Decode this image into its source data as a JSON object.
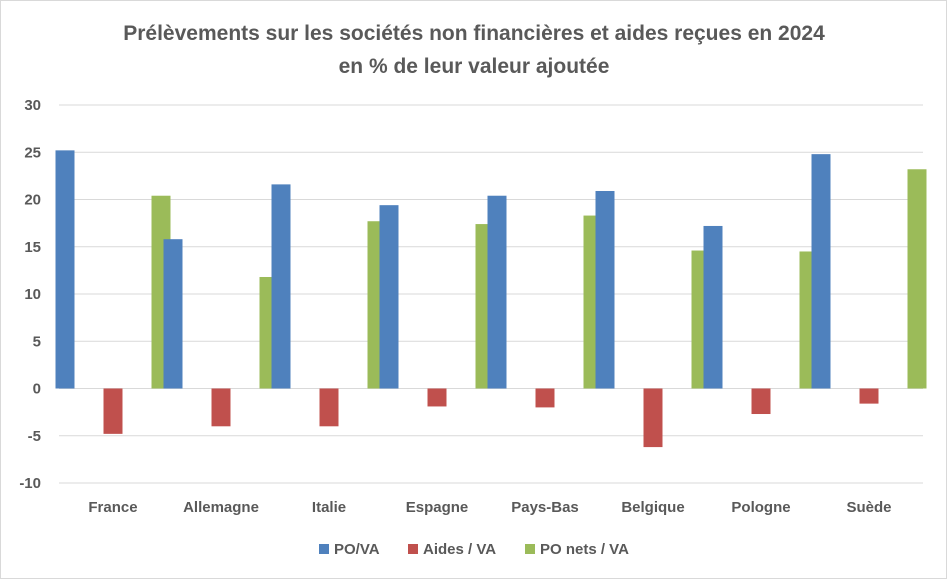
{
  "chart_data": {
    "type": "bar",
    "title": [
      "Prélèvements sur les sociétés non financières et aides reçues en 2024",
      "en % de leur valeur ajoutée"
    ],
    "xlabel": "",
    "ylabel": "",
    "categories": [
      "France",
      "Allemagne",
      "Italie",
      "Espagne",
      "Pays-Bas",
      "Belgique",
      "Pologne",
      "Suède"
    ],
    "series": [
      {
        "name": "PO/VA",
        "color": "#4f81bd",
        "values": [
          25.2,
          15.8,
          21.6,
          19.4,
          20.4,
          20.9,
          17.2,
          24.8
        ]
      },
      {
        "name": "Aides / VA",
        "color": "#c0504d",
        "values": [
          -4.8,
          -4.0,
          -4.0,
          -1.9,
          -2.0,
          -6.2,
          -2.7,
          -1.6
        ]
      },
      {
        "name": "PO nets / VA",
        "color": "#9bbb59",
        "values": [
          20.4,
          11.8,
          17.7,
          17.4,
          18.3,
          14.6,
          14.5,
          23.2
        ]
      }
    ],
    "ylim": [
      -10,
      30
    ],
    "yticks": [
      30,
      25,
      20,
      15,
      10,
      5,
      0,
      -5,
      -10
    ],
    "grid": true,
    "legend": "bottom"
  }
}
